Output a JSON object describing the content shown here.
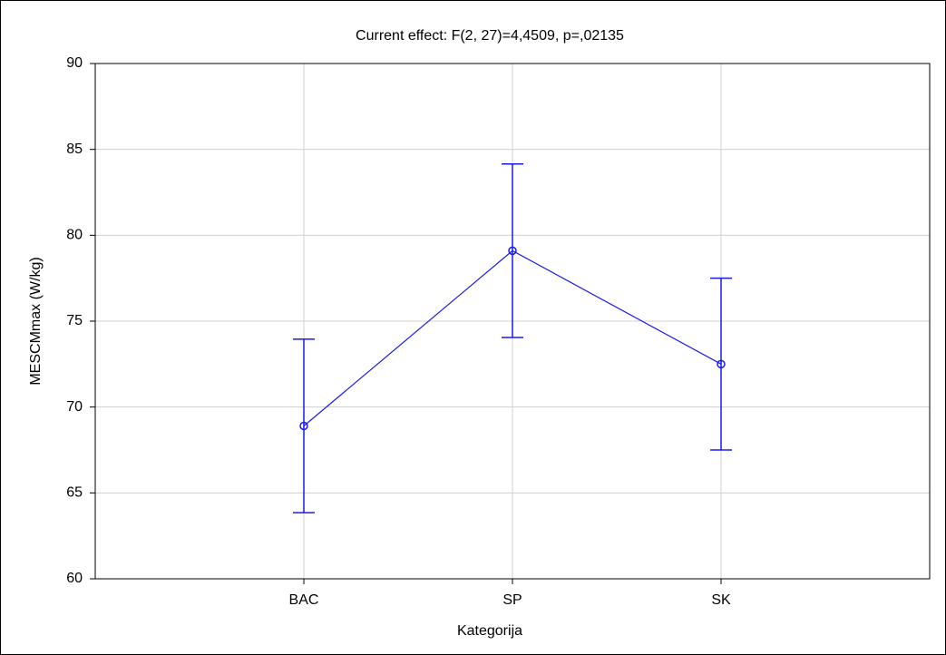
{
  "chart_data": {
    "type": "line",
    "title": "Current effect: F(2, 27)=4,4509, p=,02135",
    "x_label": "Kategorija",
    "y_label": "MESCMmax (W/kg)",
    "categories": [
      "BAC",
      "SP",
      "SK"
    ],
    "series": [
      {
        "color": "#1a1aee",
        "values": [
          68.9,
          79.1,
          72.5
        ],
        "errors": [
          5.05,
          5.05,
          5.0
        ]
      }
    ],
    "ylim": [
      60,
      90
    ],
    "yticks": [
      60,
      65,
      70,
      75,
      80,
      85,
      90
    ],
    "grid": true
  }
}
